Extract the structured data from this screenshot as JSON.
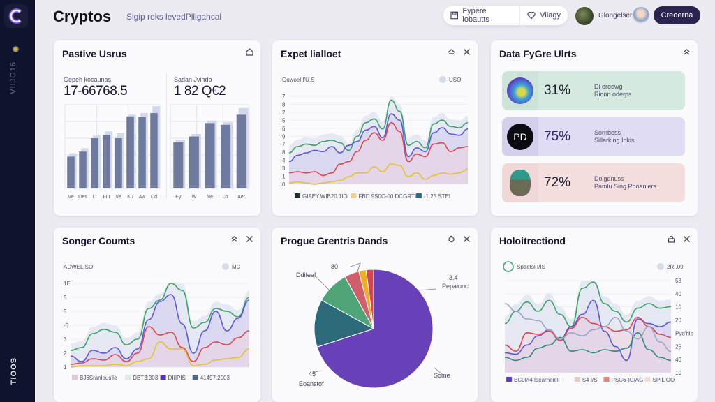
{
  "app": {
    "title": "Cryptos",
    "subtitle": "Sigip reks levedPlligahcal"
  },
  "sidebar": {
    "top_label": "VIIJO16",
    "bottom_label": "TIOOS"
  },
  "header": {
    "pill_items": [
      {
        "icon": "save-icon",
        "label": "Fypere lobautts"
      },
      {
        "icon": "heart-icon",
        "label": "Viiagy"
      }
    ],
    "user_name": "Glongelser",
    "cta_label": "Creoerna"
  },
  "cards": {
    "positive_users": {
      "title": "Pastive Usrus",
      "stats": [
        {
          "label": "Gepeh kocaunas",
          "value": "17-66768.5"
        },
        {
          "label": "Sadan Jvihdo",
          "value": "1 82 Q€2"
        }
      ]
    },
    "expert": {
      "title": "Expet lialloet"
    },
    "data_units": {
      "title": "Data FyGre Ulrts",
      "metrics": [
        {
          "percent": "31%",
          "line1": "Di eroowg",
          "line2": "Rionn oderps",
          "avatar": "globe-avatar",
          "color": "#d5e9df"
        },
        {
          "percent": "75%",
          "line1": "Sornbess",
          "line2": "Sillarking Inkis",
          "avatar": "PD",
          "color": "#e0dcf4"
        },
        {
          "percent": "72%",
          "line1": "Dolgenuss",
          "line2": "Pamlu Sing Pboanlers",
          "avatar": "person-avatar",
          "color": "#f4dede"
        }
      ]
    },
    "songer_counts": {
      "title": "Songer Coumts"
    },
    "progue": {
      "title": "Progue Grentris Dands"
    },
    "holotrection": {
      "title": "Holoitrectiond"
    }
  },
  "chart_data": [
    {
      "id": "positive-users-left",
      "type": "bar",
      "categories": [
        "Ve",
        "Oes",
        "Lt",
        "Fiu",
        "Ve",
        "Ku",
        "Aw",
        "Cd"
      ],
      "series": [
        {
          "name": "front",
          "values": [
            38,
            44,
            60,
            64,
            60,
            86,
            85,
            90
          ]
        },
        {
          "name": "back",
          "values": [
            42,
            48,
            63,
            68,
            66,
            88,
            90,
            98
          ]
        }
      ],
      "ylim": [
        0,
        100
      ]
    },
    {
      "id": "positive-users-right",
      "type": "bar",
      "categories": [
        "Ey",
        "W",
        "Ne",
        "Uz",
        "Aer"
      ],
      "series": [
        {
          "name": "front",
          "values": [
            55,
            62,
            78,
            76,
            88
          ]
        },
        {
          "name": "back",
          "values": [
            58,
            65,
            81,
            79,
            96
          ]
        }
      ],
      "ylim": [
        0,
        100
      ]
    },
    {
      "id": "expert-lines",
      "type": "line",
      "title": "Expet lialloet",
      "subtitle": "Ouwoel I'U.S",
      "legend_top": "USO",
      "y_ticks": [
        "0",
        "1",
        "3",
        "4",
        "8",
        "7",
        "9",
        "6",
        "5",
        "2",
        "8",
        "7"
      ],
      "ylim": [
        0,
        7
      ],
      "legend": [
        {
          "name": "GIAEY.WIB20.1IO",
          "color": "#24343a"
        },
        {
          "name": "FBD.9S0C-00 DCGRTL",
          "color": "#f1cf85"
        },
        {
          "name": "-1.25 STEL",
          "color": "#2f6690"
        }
      ],
      "series": [
        {
          "name": "green",
          "color": "#3aa267",
          "values": [
            2.5,
            3.0,
            3.2,
            3.1,
            3.4,
            3.5,
            3.3,
            2.7,
            3.8,
            4.9,
            5.2,
            4.4,
            6.7,
            5.8,
            3.1,
            3.4,
            2.9,
            4.8,
            5.1,
            4.6,
            4.5,
            4.9
          ]
        },
        {
          "name": "blue",
          "color": "#5a56d8",
          "values": [
            1.8,
            2.3,
            2.5,
            2.7,
            2.6,
            3.0,
            2.5,
            3.1,
            3.4,
            4.3,
            4.6,
            3.7,
            5.6,
            5.1,
            2.2,
            2.9,
            2.6,
            4.1,
            4.5,
            4.0,
            3.9,
            4.4
          ]
        },
        {
          "name": "red",
          "color": "#d9474f",
          "values": [
            0.9,
            1.0,
            0.9,
            1.0,
            0.7,
            0.9,
            1.6,
            1.8,
            2.6,
            3.5,
            4.1,
            3.5,
            4.9,
            4.2,
            1.8,
            2.4,
            2.2,
            3.2,
            3.3,
            2.6,
            2.9,
            3.0
          ]
        },
        {
          "name": "yellow",
          "color": "#e2c42c",
          "values": [
            0.1,
            0.2,
            0.1,
            0.0,
            0.1,
            0.2,
            0.3,
            0.6,
            0.9,
            0.9,
            1.4,
            1.0,
            1.6,
            1.5,
            0.6,
            0.9,
            0.4,
            0.7,
            0.9,
            0.8,
            0.9,
            1.2
          ]
        }
      ]
    },
    {
      "id": "songer-lines",
      "type": "line",
      "title": "Songer Coumts",
      "subtitle": "ADWEL.SO",
      "legend_top": "MC",
      "y_ticks": [
        "1",
        "2",
        "3",
        "-5",
        "5",
        "5",
        "1E"
      ],
      "ylim": [
        1,
        7
      ],
      "legend": [
        {
          "name": "BJ6Sranleus'Ie",
          "color": "#e4c6d6"
        },
        {
          "name": "DBT3:303",
          "color": "#dcece2"
        },
        {
          "name": "DIIIPIS",
          "color": "#5431c4"
        },
        {
          "name": "41497.2003",
          "color": "#4f6990"
        }
      ],
      "series": [
        {
          "name": "green",
          "color": "#3aa267",
          "values": [
            2.2,
            2.4,
            3.4,
            3.7,
            3.5,
            2.6,
            3.0,
            5.2,
            5.8,
            7.0,
            6.5,
            3.8,
            4.2,
            5.2,
            5.0,
            4.6,
            6.0
          ]
        },
        {
          "name": "blue",
          "color": "#5a56d8",
          "values": [
            1.8,
            1.4,
            2.2,
            2.0,
            2.4,
            1.6,
            2.3,
            4.4,
            5.7,
            6.2,
            4.1,
            2.0,
            3.6,
            5.0,
            3.6,
            4.5,
            5.8
          ]
        },
        {
          "name": "red",
          "color": "#d9474f",
          "values": [
            1.2,
            1.3,
            1.6,
            1.5,
            1.9,
            1.4,
            2.0,
            3.9,
            3.3,
            3.5,
            2.4,
            1.4,
            2.4,
            2.8,
            2.6,
            3.1,
            3.6
          ]
        },
        {
          "name": "yellow",
          "color": "#e2c42c",
          "values": [
            1.0,
            1.1,
            1.1,
            1.1,
            1.2,
            1.1,
            1.4,
            1.6,
            2.8,
            2.3,
            2.3,
            1.1,
            1.2,
            1.5,
            1.6,
            1.7,
            2.3
          ]
        }
      ]
    },
    {
      "id": "progue-pie",
      "type": "pie",
      "title": "Progue Grentris Dands",
      "slices": [
        {
          "label": "Some",
          "value": 70,
          "color": "#6841b8"
        },
        {
          "label": "Eoanstof",
          "value": 13,
          "color": "#2c6a7a"
        },
        {
          "label": "Ddifeaf",
          "value": 9,
          "color": "#4fa577"
        },
        {
          "label": "80",
          "value": 4,
          "color": "#d05f6b"
        },
        {
          "label": "yellow",
          "value": 2,
          "color": "#f0ad2a"
        },
        {
          "label": "red",
          "value": 2,
          "color": "#d84452"
        }
      ],
      "annotations": [
        {
          "text": "80"
        },
        {
          "text": "Ddifeaf"
        },
        {
          "text": "3.4"
        },
        {
          "text": "Pepaioncl"
        },
        {
          "text": "Some"
        },
        {
          "text": "45"
        },
        {
          "text": "Eoanstof"
        }
      ]
    },
    {
      "id": "holo-lines",
      "type": "line",
      "title": "Holoitrectiond",
      "subtitle": "Spaetsl I/IS",
      "legend_top": "2RI.09",
      "y_ticks_right": [
        "10",
        "40",
        "25",
        "Pyd'hle",
        "20",
        "10",
        "40",
        "58"
      ],
      "ylim": [
        0,
        60
      ],
      "legend": [
        {
          "name": "EC0I/I4 Isearnoiell",
          "color": "#5b3bd0"
        },
        {
          "name": "S4 I/S",
          "color": "#ecc8c8"
        },
        {
          "name": "PSC6-)C/AG",
          "color": "#e0857a"
        },
        {
          "name": "SPIL OO",
          "color": "#f1dede"
        }
      ],
      "series": [
        {
          "name": "green",
          "color": "#3aa267",
          "values": [
            32,
            40,
            46,
            40,
            47,
            38,
            30,
            55,
            59,
            45,
            40,
            33,
            42,
            45,
            42,
            43
          ]
        },
        {
          "name": "blue",
          "color": "#5a56d8",
          "values": [
            13,
            12,
            18,
            24,
            28,
            22,
            30,
            38,
            47,
            27,
            17,
            8,
            35,
            32,
            30,
            33
          ]
        },
        {
          "name": "red",
          "color": "#d9474f",
          "values": [
            18,
            14,
            26,
            25,
            27,
            21,
            29,
            36,
            32,
            30,
            27,
            28,
            36,
            30,
            25,
            23
          ]
        },
        {
          "name": "teal",
          "color": "#2c8a7a",
          "values": [
            10,
            8,
            10,
            16,
            18,
            23,
            14,
            15,
            13,
            15,
            14,
            16,
            26,
            15,
            10,
            8
          ]
        },
        {
          "name": "slate",
          "color": "#9aa7c2",
          "values": [
            45,
            40,
            35,
            34,
            28,
            22,
            26,
            24,
            28,
            30,
            36,
            27,
            22,
            30,
            20,
            14
          ]
        }
      ]
    }
  ]
}
